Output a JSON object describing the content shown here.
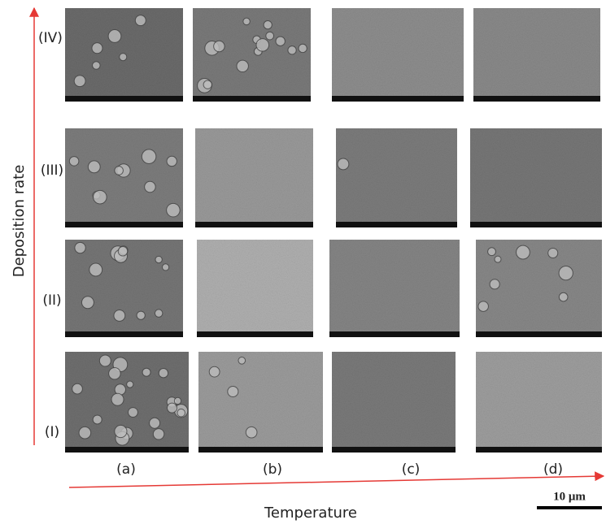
{
  "y_axis_label": "Deposition rate",
  "x_axis_label": "Temperature",
  "row_labels": [
    "(IV)",
    "(III)",
    "(II)",
    "(I)"
  ],
  "column_labels": [
    "(a)",
    "(b)",
    "(c)",
    "(d)"
  ],
  "scale_bar": "10 μm"
}
